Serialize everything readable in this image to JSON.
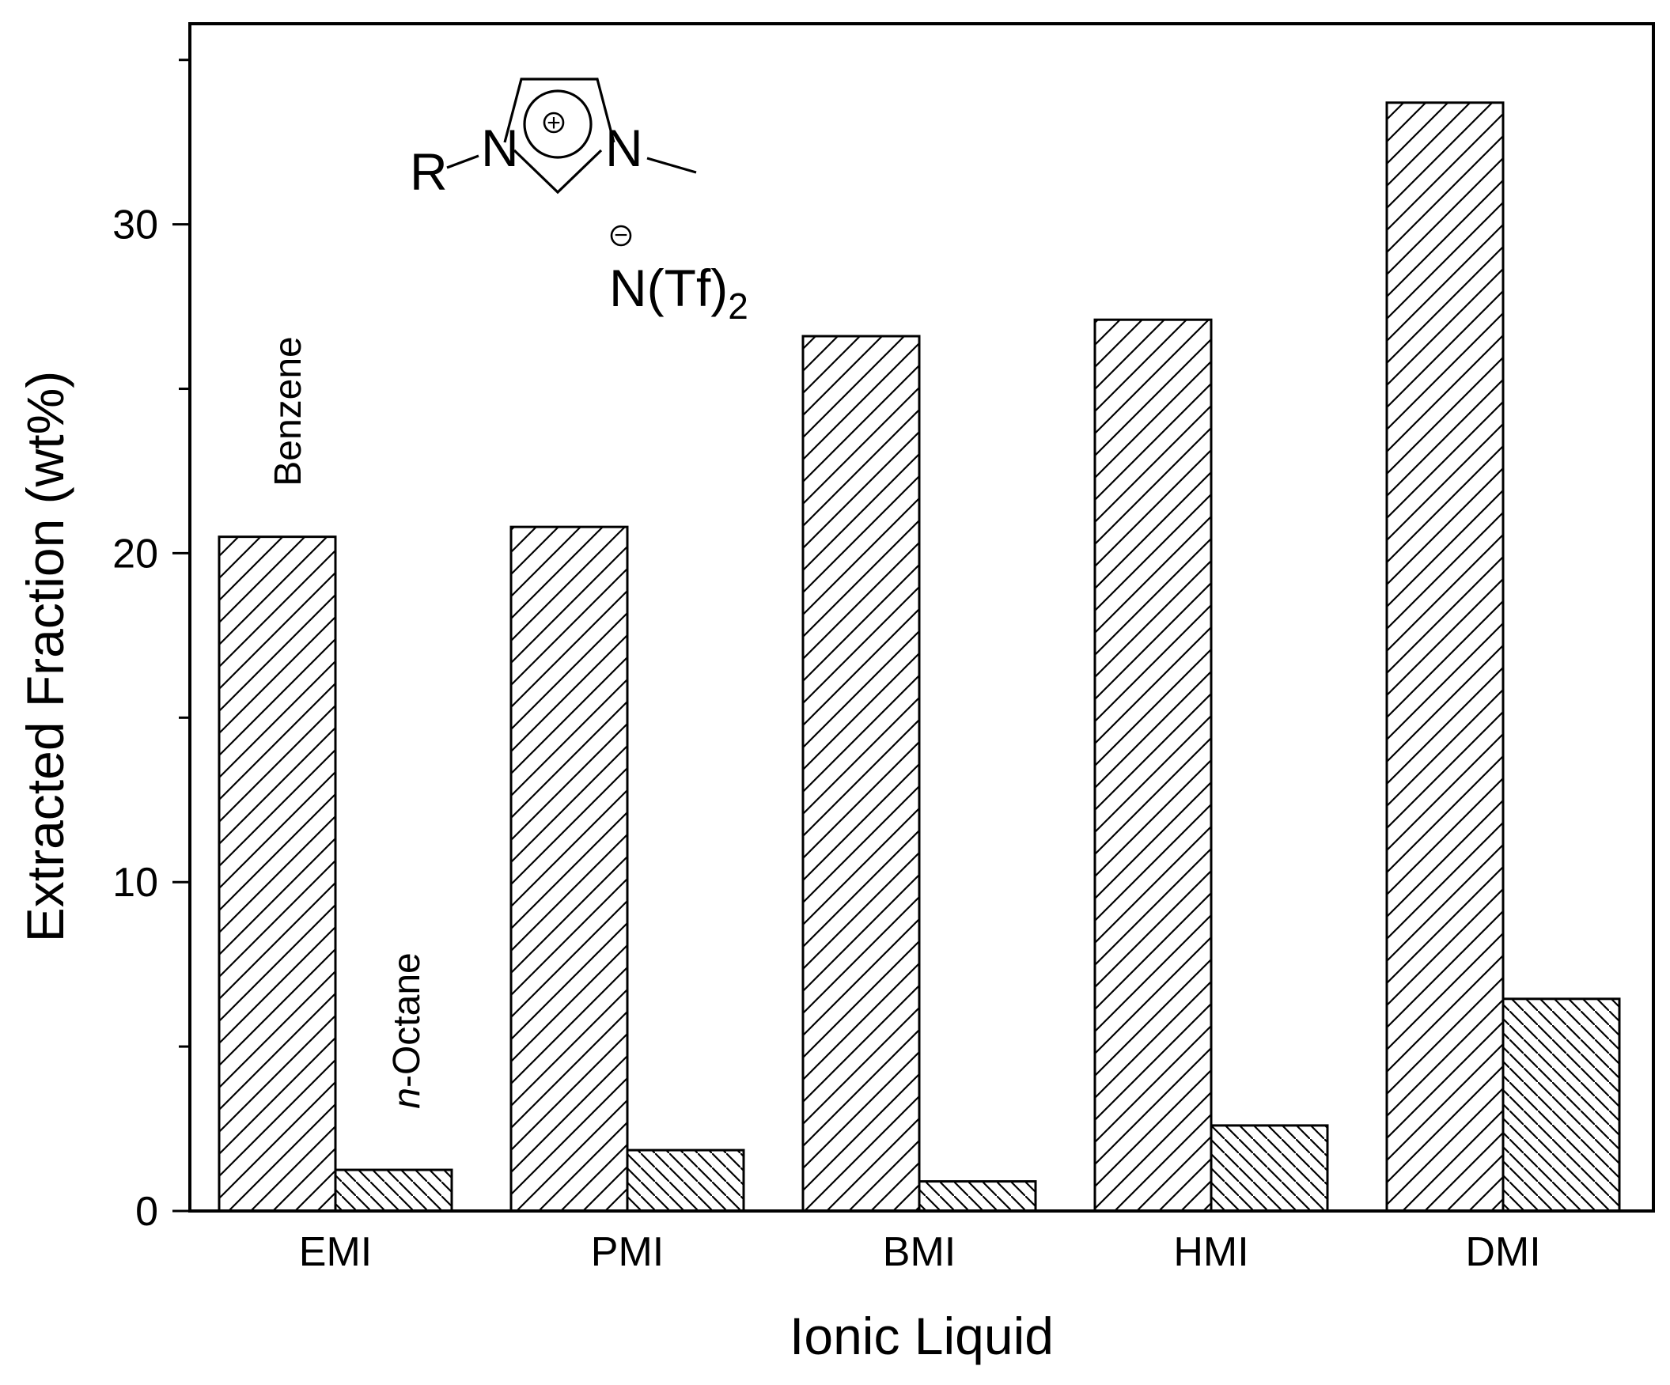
{
  "chart_data": {
    "type": "bar",
    "categories": [
      "EMI",
      "PMI",
      "BMI",
      "HMI",
      "DMI"
    ],
    "series": [
      {
        "name": "Benzene",
        "values": [
          20.5,
          20.8,
          26.6,
          27.1,
          33.7
        ],
        "hatch": "forward"
      },
      {
        "name": "n-Octane",
        "values": [
          1.25,
          1.85,
          0.9,
          2.6,
          6.45
        ],
        "hatch": "backward"
      }
    ],
    "xlabel": "Ionic Liquid",
    "ylabel": "Extracted Fraction (wt%)",
    "ylim": [
      0,
      36.1
    ],
    "yticks": [
      0,
      10,
      20,
      30
    ],
    "grid": false,
    "annotations": [
      {
        "text": "Benzene",
        "target": "EMI benzene bar",
        "orientation": "vertical"
      },
      {
        "text_italic": "n",
        "text": "-Octane",
        "target": "EMI n-octane bar",
        "orientation": "vertical"
      }
    ],
    "structure_inset": {
      "substituent": "R",
      "ring_atoms": [
        "N",
        "N"
      ],
      "cation_charge": "+",
      "anion_charge": "−",
      "anion": "N(Tf)",
      "anion_subscript": "2"
    }
  }
}
